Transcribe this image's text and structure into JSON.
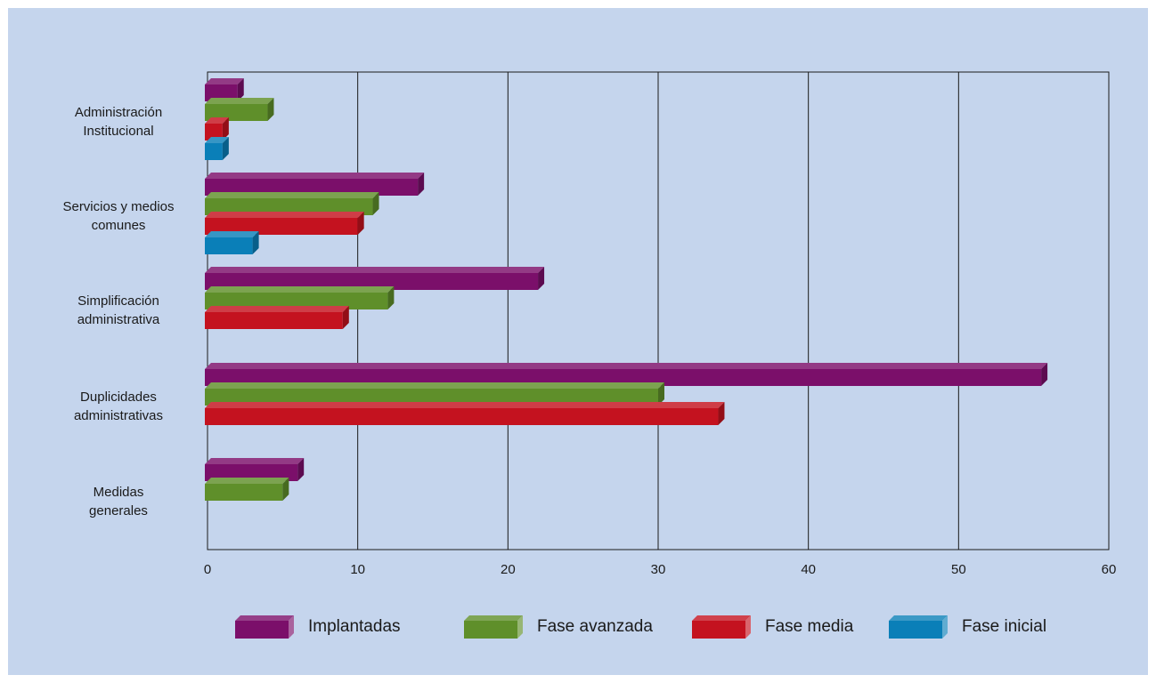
{
  "chart_data": {
    "type": "bar",
    "orientation": "horizontal",
    "categories": [
      [
        "Administración",
        "Institucional"
      ],
      [
        "Servicios y medios",
        "comunes"
      ],
      [
        "Simplificación",
        "administrativa"
      ],
      [
        "Duplicidades",
        "administrativas"
      ],
      [
        "Medidas",
        "generales"
      ]
    ],
    "series": [
      {
        "name": "Implantadas",
        "color": "#7b0f6a",
        "values": [
          2,
          14,
          22,
          55.5,
          6
        ]
      },
      {
        "name": "Fase avanzada",
        "color": "#5f8f2a",
        "values": [
          4,
          11,
          12,
          30,
          5
        ]
      },
      {
        "name": "Fase media",
        "color": "#c4121f",
        "values": [
          1,
          10,
          9,
          34,
          0
        ]
      },
      {
        "name": "Fase inicial",
        "color": "#0a7fb8",
        "values": [
          1,
          3,
          0,
          0,
          0
        ]
      }
    ],
    "x_ticks": [
      "0",
      "10",
      "20",
      "30",
      "40",
      "50",
      "60"
    ],
    "xlim": [
      0,
      60
    ],
    "grid": "vertical",
    "legend_position": "bottom",
    "title": "",
    "xlabel": "",
    "ylabel": ""
  }
}
